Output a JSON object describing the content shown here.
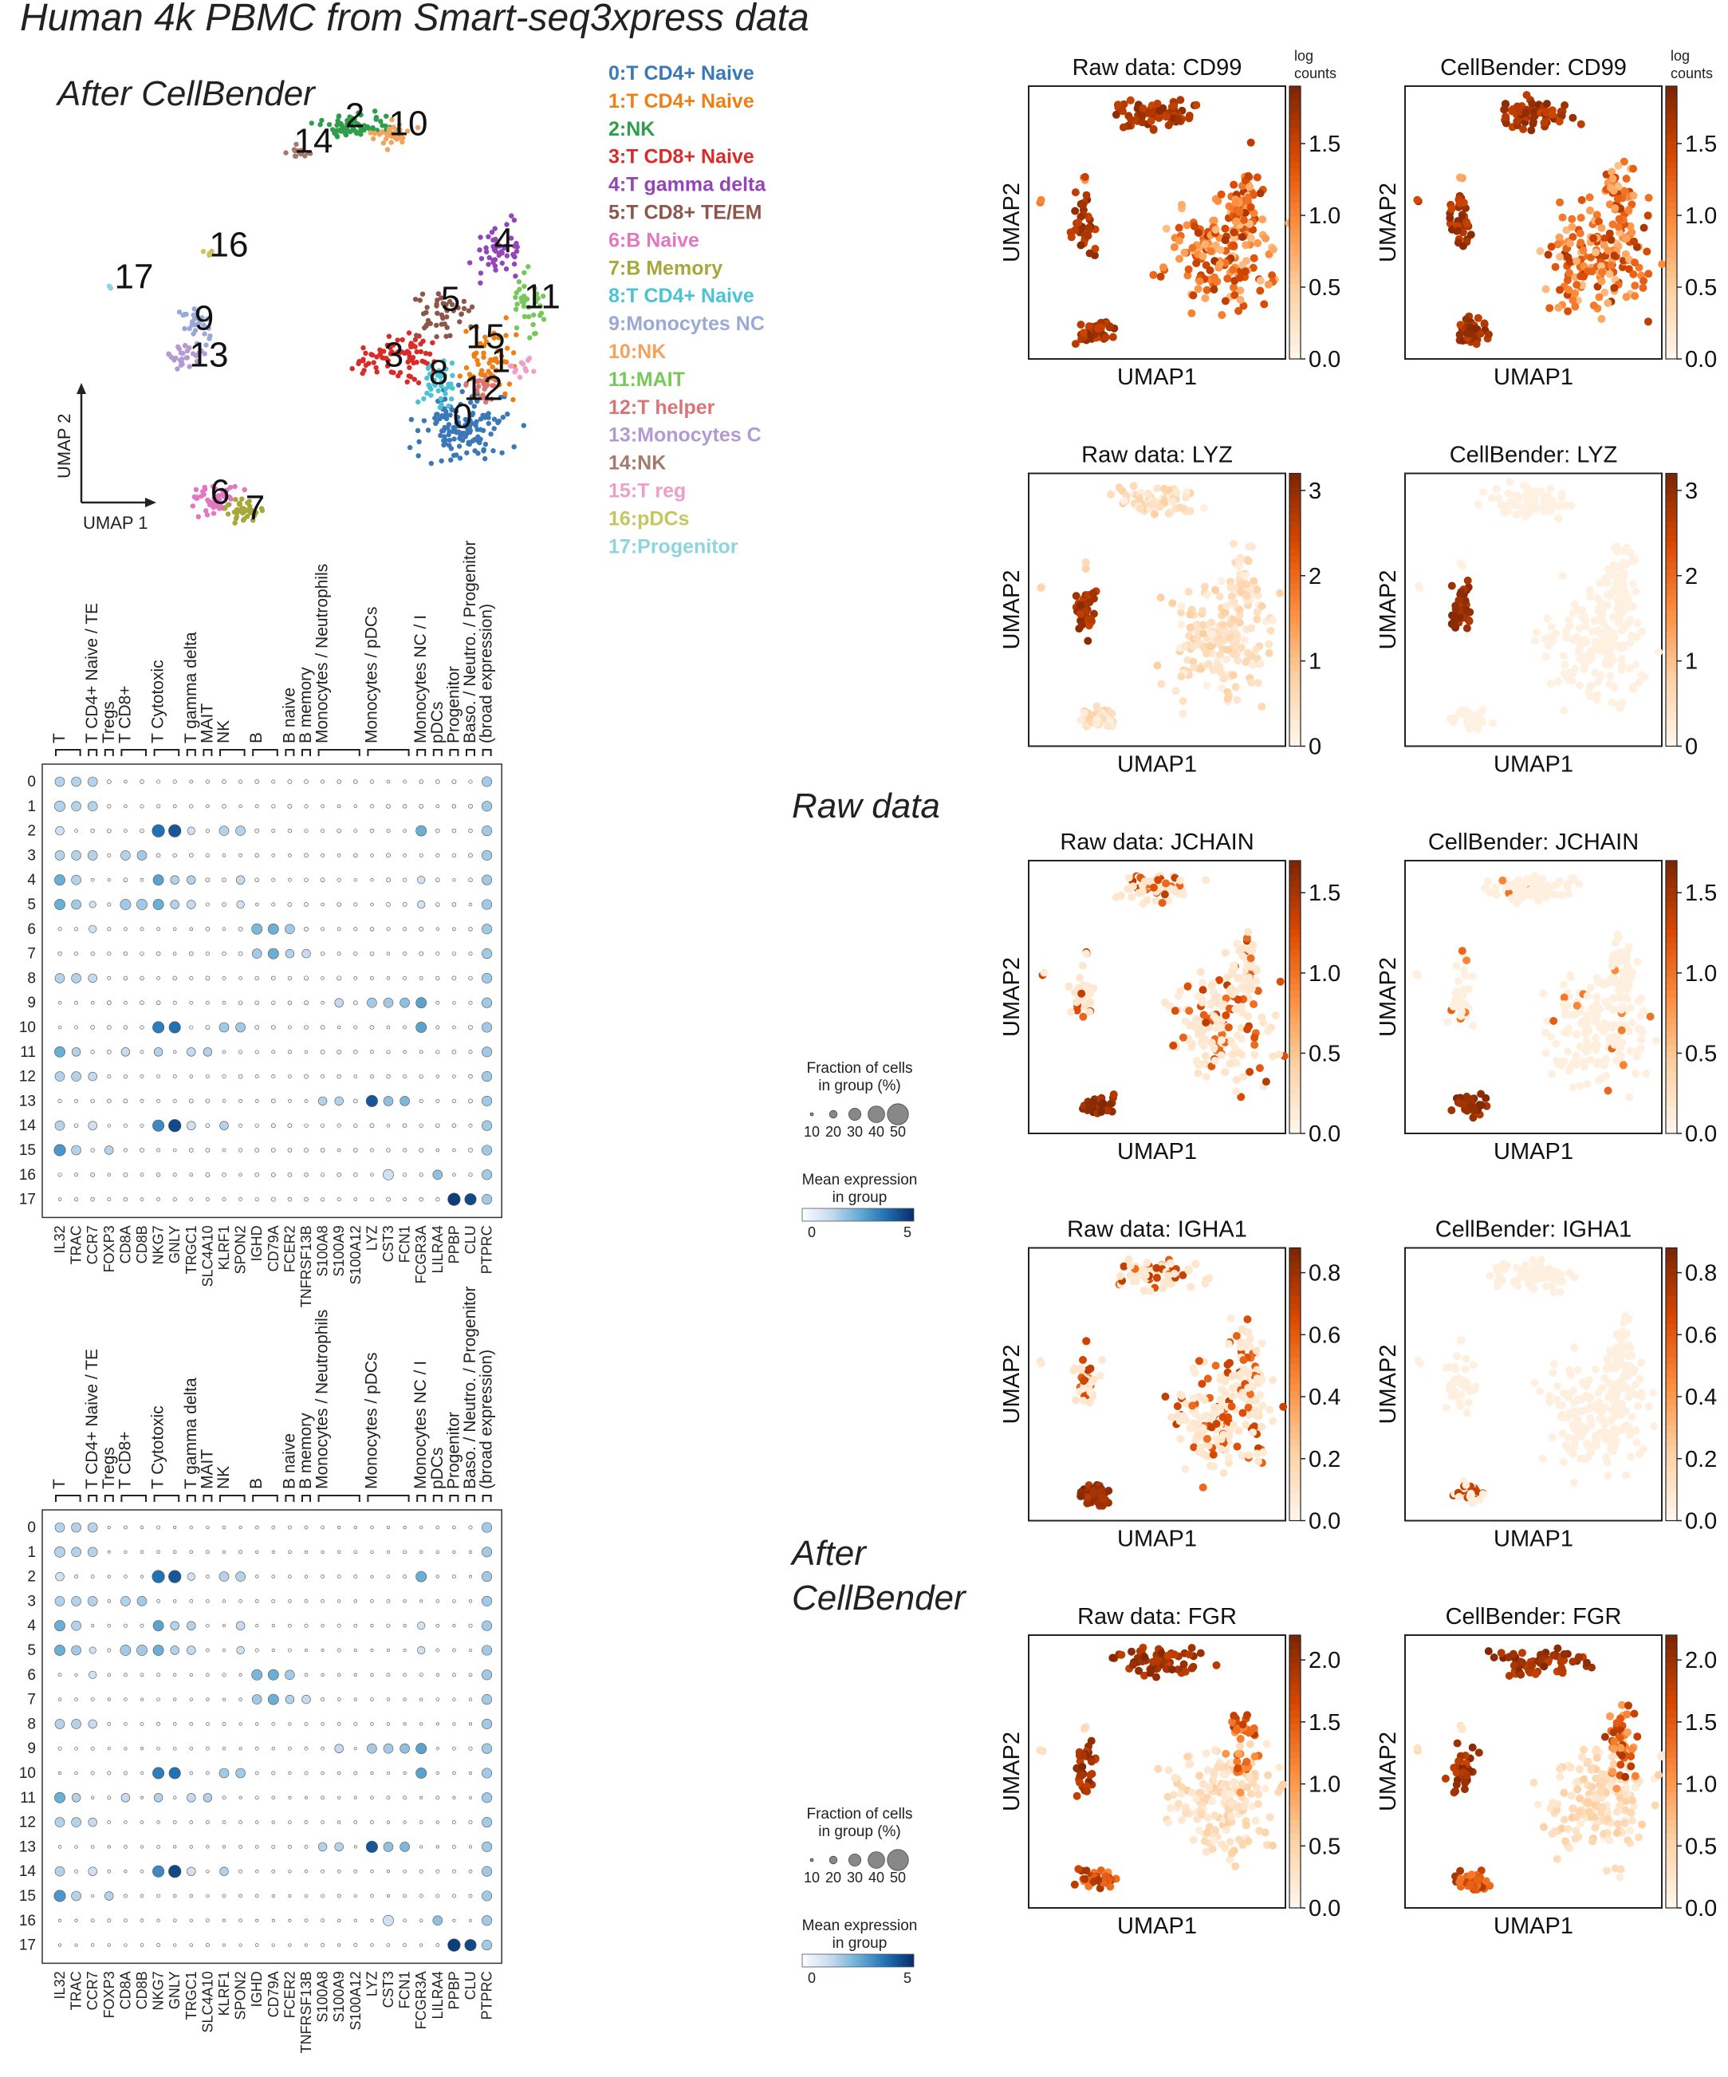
{
  "figure": {
    "title": "Human 4k PBMC from Smart-seq3xpress data",
    "umap_label": "After CellBender",
    "raw_label": "Raw data",
    "after_label_1": "After",
    "after_label_2": "CellBender",
    "umap_axis_x": "UMAP 1",
    "umap_axis_y": "UMAP 2"
  },
  "clusters": [
    {
      "id": "0",
      "name": "T CD4+ Naive",
      "color": "#3a78b8"
    },
    {
      "id": "1",
      "name": "T CD4+ Naive",
      "color": "#ef7f15"
    },
    {
      "id": "2",
      "name": "NK",
      "color": "#2f9e4a"
    },
    {
      "id": "3",
      "name": "T CD8+ Naive",
      "color": "#d92b27"
    },
    {
      "id": "4",
      "name": "T gamma delta",
      "color": "#9445b8"
    },
    {
      "id": "5",
      "name": "T CD8+ TE/EM",
      "color": "#8c564b"
    },
    {
      "id": "6",
      "name": "B Naive",
      "color": "#e377c2"
    },
    {
      "id": "7",
      "name": "B Memory",
      "color": "#a6a83a"
    },
    {
      "id": "8",
      "name": "T CD4+ Naive",
      "color": "#4cc3d3"
    },
    {
      "id": "9",
      "name": "Monocytes NC",
      "color": "#9aa9d6"
    },
    {
      "id": "10",
      "name": "NK",
      "color": "#f2a35e"
    },
    {
      "id": "11",
      "name": "MAIT",
      "color": "#77c85a"
    },
    {
      "id": "12",
      "name": "T helper",
      "color": "#d97575"
    },
    {
      "id": "13",
      "name": "Monocytes C",
      "color": "#b49ad3"
    },
    {
      "id": "14",
      "name": "NK",
      "color": "#a57a6c"
    },
    {
      "id": "15",
      "name": "T reg",
      "color": "#ef9ec8"
    },
    {
      "id": "16",
      "name": "pDCs",
      "color": "#c6c65e"
    },
    {
      "id": "17",
      "name": "Progenitor",
      "color": "#8fd4df"
    }
  ],
  "dotplot": {
    "genes": [
      "IL32",
      "TRAC",
      "CCR7",
      "FOXP3",
      "CD8A",
      "CD8B",
      "NKG7",
      "GNLY",
      "TRGC1",
      "SLC4A10",
      "KLRF1",
      "SPON2",
      "IGHD",
      "CD79A",
      "FCER2",
      "TNFRSF13B",
      "S100A8",
      "S100A9",
      "S100A12",
      "LYZ",
      "CST3",
      "FCN1",
      "FCGR3A",
      "LILRA4",
      "PPBP",
      "CLU",
      "PTPRC"
    ],
    "groups": [
      {
        "label": "T",
        "start": 0,
        "end": 1
      },
      {
        "label": "T CD4+ Naive / TE",
        "start": 2,
        "end": 2
      },
      {
        "label": "Tregs",
        "start": 3,
        "end": 3
      },
      {
        "label": "T CD8+",
        "start": 4,
        "end": 5
      },
      {
        "label": "T Cytotoxic",
        "start": 6,
        "end": 7
      },
      {
        "label": "T gamma delta",
        "start": 8,
        "end": 8
      },
      {
        "label": "MAIT",
        "start": 9,
        "end": 9
      },
      {
        "label": "NK",
        "start": 10,
        "end": 11
      },
      {
        "label": "B",
        "start": 12,
        "end": 13
      },
      {
        "label": "B naive",
        "start": 14,
        "end": 14
      },
      {
        "label": "B memory",
        "start": 15,
        "end": 15
      },
      {
        "label": "Monocytes / Neutrophils",
        "start": 16,
        "end": 18
      },
      {
        "label": "Monocytes / pDCs",
        "start": 19,
        "end": 21
      },
      {
        "label": "Monocytes NC / I",
        "start": 22,
        "end": 22
      },
      {
        "label": "pDCs",
        "start": 23,
        "end": 23
      },
      {
        "label": "Progenitor",
        "start": 24,
        "end": 24
      },
      {
        "label": "Baso. / Neutro. / Progenitor",
        "start": 25,
        "end": 25
      },
      {
        "label": "(broad expression)",
        "start": 26,
        "end": 26
      }
    ],
    "clusters": [
      "0",
      "1",
      "2",
      "3",
      "4",
      "5",
      "6",
      "7",
      "8",
      "9",
      "10",
      "11",
      "12",
      "13",
      "14",
      "15",
      "16",
      "17"
    ],
    "size_legend_title_1": "Fraction of cells",
    "size_legend_title_2": "in group (%)",
    "size_legend_values": [
      "10",
      "20",
      "30",
      "40",
      "50"
    ],
    "color_legend_title_1": "Mean expression",
    "color_legend_title_2": "in group",
    "color_legend_min": "0",
    "color_legend_max": "5"
  },
  "feature_plots": {
    "x_label": "UMAP1",
    "y_label": "UMAP2",
    "colorbar_title_1": "log",
    "colorbar_title_2": "counts",
    "rows": [
      {
        "gene": "CD99",
        "raw_title": "Raw data: CD99",
        "cb_title": "CellBender: CD99",
        "ticks": [
          "0.0",
          "0.5",
          "1.0",
          "1.5"
        ],
        "max": 1.9,
        "raw_pattern": "all",
        "cb_pattern": "all"
      },
      {
        "gene": "LYZ",
        "raw_title": "Raw data: LYZ",
        "cb_title": "CellBender: LYZ",
        "ticks": [
          "0",
          "1",
          "2",
          "3"
        ],
        "max": 3.2,
        "raw_pattern": "mono_bg",
        "cb_pattern": "mono"
      },
      {
        "gene": "JCHAIN",
        "raw_title": "Raw data: JCHAIN",
        "cb_title": "CellBender: JCHAIN",
        "ticks": [
          "0.0",
          "0.5",
          "1.0",
          "1.5"
        ],
        "max": 1.7,
        "raw_pattern": "b_scatter",
        "cb_pattern": "b_sparse"
      },
      {
        "gene": "IGHA1",
        "raw_title": "Raw data: IGHA1",
        "cb_title": "CellBender: IGHA1",
        "ticks": [
          "0.0",
          "0.2",
          "0.4",
          "0.6",
          "0.8"
        ],
        "max": 0.88,
        "raw_pattern": "b_scatter",
        "cb_pattern": "b_only"
      },
      {
        "gene": "FGR",
        "raw_title": "Raw data: FGR",
        "cb_title": "CellBender: FGR",
        "ticks": [
          "0.0",
          "0.5",
          "1.0",
          "1.5",
          "2.0"
        ],
        "max": 2.2,
        "raw_pattern": "nk_mono",
        "cb_pattern": "nk_mono"
      }
    ]
  },
  "chart_data": [
    {
      "type": "scatter",
      "title": "After CellBender",
      "xlabel": "UMAP 1",
      "ylabel": "UMAP 2",
      "legend": [
        "0: T CD4+ Naive",
        "1: T CD4+ Naive",
        "2: NK",
        "3: T CD8+ Naive",
        "4: T gamma delta",
        "5: T CD8+ TE/EM",
        "6: B Naive",
        "7: B Memory",
        "8: T CD4+ Naive",
        "9: Monocytes NC",
        "10: NK",
        "11: MAIT",
        "12: T helper",
        "13: Monocytes C",
        "14: NK",
        "15: T reg",
        "16: pDCs",
        "17: Progenitor"
      ]
    },
    {
      "type": "heatmap",
      "title": "Raw data",
      "subtype": "dotplot",
      "x": "genes",
      "y": "clusters 0-17",
      "size_range_percent": [
        10,
        50
      ],
      "color_range": [
        0,
        5
      ]
    },
    {
      "type": "heatmap",
      "title": "After CellBender",
      "subtype": "dotplot",
      "x": "genes",
      "y": "clusters 0-17",
      "size_range_percent": [
        10,
        50
      ],
      "color_range": [
        0,
        5
      ]
    },
    {
      "type": "scatter",
      "title": "Feature plots (Raw data vs CellBender)",
      "genes": [
        "CD99",
        "LYZ",
        "JCHAIN",
        "IGHA1",
        "FGR"
      ],
      "colorbar_max": {
        "CD99": 1.9,
        "LYZ": 3.2,
        "JCHAIN": 1.7,
        "IGHA1": 0.88,
        "FGR": 2.2
      }
    }
  ]
}
